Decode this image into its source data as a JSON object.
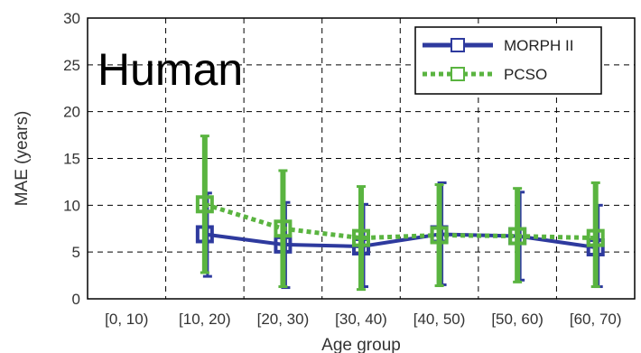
{
  "overlay_label": "Human",
  "chart_data": {
    "type": "line",
    "xlabel": "Age group",
    "ylabel": "MAE (years)",
    "categories": [
      "[0, 10)",
      "[10, 20)",
      "[20, 30)",
      "[30, 40)",
      "[40, 50)",
      "[50, 60)",
      "[60, 70)"
    ],
    "ylim": [
      0,
      30
    ],
    "yticks": [
      "0",
      "5",
      "10",
      "15",
      "20",
      "25",
      "30"
    ],
    "grid": true,
    "legend_position": "top-right",
    "series": [
      {
        "name": "MORPH II",
        "color": "#2e3a9e",
        "style": "solid",
        "values": [
          null,
          6.9,
          5.8,
          5.6,
          6.9,
          6.7,
          5.5
        ],
        "err_low": [
          null,
          2.4,
          1.2,
          1.3,
          1.5,
          2.0,
          1.3
        ],
        "err_high": [
          null,
          11.3,
          10.3,
          10.1,
          12.4,
          11.4,
          10.0
        ]
      },
      {
        "name": "PCSO",
        "color": "#5ab440",
        "style": "dotted",
        "values": [
          null,
          10.1,
          7.5,
          6.5,
          6.8,
          6.7,
          6.5
        ],
        "err_low": [
          null,
          2.8,
          1.3,
          1.0,
          1.4,
          1.8,
          1.3
        ],
        "err_high": [
          null,
          17.4,
          13.7,
          12.0,
          12.2,
          11.8,
          12.4
        ]
      }
    ]
  }
}
